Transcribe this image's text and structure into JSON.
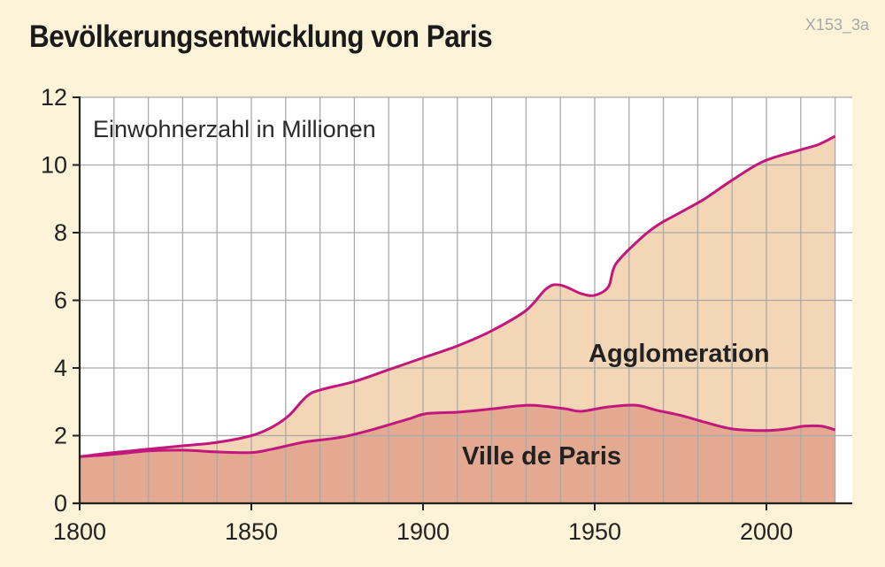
{
  "header": {
    "title": "Bevölkerungsentwicklung von Paris",
    "figure_code": "X153_3a"
  },
  "colors": {
    "background": "#fdf3d8",
    "plot_background": "#ffffff",
    "agglomeration_fill": "#f2d6b6",
    "ville_fill": "#e3aa91",
    "line": "#c2177c",
    "axis": "#222222",
    "grid": "#a9a9a9"
  },
  "chart_data": {
    "type": "area",
    "title": "Bevölkerungsentwicklung von Paris",
    "unit_label": "Einwohnerzahl in Millionen",
    "xlabel": "",
    "ylabel": "",
    "xlim": [
      1800,
      2025
    ],
    "ylim": [
      0,
      12
    ],
    "x_ticks": [
      1800,
      1850,
      1900,
      1950,
      2000
    ],
    "y_ticks": [
      0,
      2,
      4,
      6,
      8,
      10,
      12
    ],
    "x_grid_step": 10,
    "grid": true,
    "series": [
      {
        "name": "Agglomeration",
        "color": "#c2177c",
        "fill": "#f2d6b6",
        "x": [
          1800,
          1810,
          1820,
          1830,
          1840,
          1850,
          1856,
          1861,
          1866,
          1870,
          1880,
          1890,
          1900,
          1910,
          1920,
          1930,
          1936,
          1940,
          1946,
          1950,
          1954,
          1956,
          1962,
          1968,
          1975,
          1982,
          1990,
          1999,
          2010,
          2015,
          2020
        ],
        "values": [
          1.38,
          1.5,
          1.6,
          1.7,
          1.8,
          2.0,
          2.25,
          2.6,
          3.15,
          3.35,
          3.6,
          3.95,
          4.3,
          4.65,
          5.1,
          5.7,
          6.35,
          6.45,
          6.2,
          6.15,
          6.4,
          7.05,
          7.7,
          8.2,
          8.6,
          9.0,
          9.55,
          10.1,
          10.45,
          10.6,
          10.85
        ]
      },
      {
        "name": "Ville de Paris",
        "color": "#c2177c",
        "fill": "#e3aa91",
        "x": [
          1800,
          1810,
          1820,
          1830,
          1840,
          1850,
          1856,
          1866,
          1876,
          1886,
          1896,
          1901,
          1911,
          1921,
          1931,
          1941,
          1946,
          1954,
          1962,
          1968,
          1975,
          1982,
          1990,
          1999,
          2006,
          2011,
          2016,
          2020
        ],
        "values": [
          1.38,
          1.45,
          1.55,
          1.57,
          1.52,
          1.5,
          1.6,
          1.82,
          1.95,
          2.2,
          2.5,
          2.65,
          2.7,
          2.8,
          2.9,
          2.8,
          2.72,
          2.85,
          2.9,
          2.75,
          2.6,
          2.4,
          2.2,
          2.15,
          2.2,
          2.28,
          2.28,
          2.17
        ]
      }
    ]
  }
}
